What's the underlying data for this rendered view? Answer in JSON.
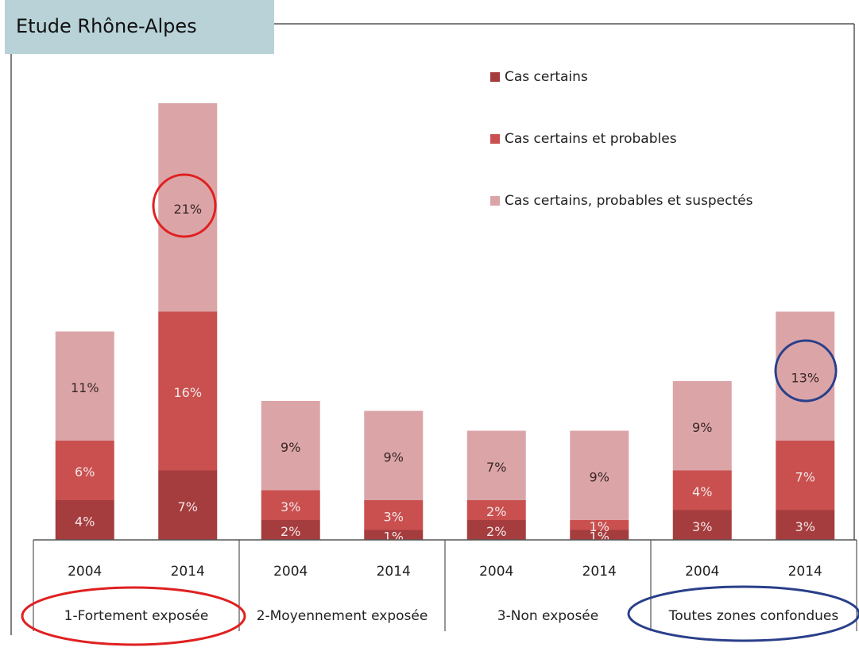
{
  "chart_data": {
    "type": "stacked_bar",
    "title": "Etude Rhône-Alpes",
    "categories": [
      "2004",
      "2014",
      "2004",
      "2014",
      "2004",
      "2014",
      "2004",
      "2014"
    ],
    "groups": [
      "1-Fortement exposée",
      "2-Moyennement exposée",
      "3-Non exposée",
      "Toutes zones confondues"
    ],
    "series": [
      {
        "name": "Cas certains",
        "color": "#a53c3e",
        "values": [
          4,
          7,
          2,
          1,
          2,
          1,
          3,
          3
        ],
        "value_labels": [
          "4%",
          "7%",
          "2%",
          "1%",
          "2%",
          "1%",
          "3%",
          "3%"
        ]
      },
      {
        "name": "Cas certains et probables",
        "color": "#c9504f",
        "values": [
          6,
          16,
          3,
          3,
          2,
          1,
          4,
          7
        ],
        "value_labels": [
          "6%",
          "16%",
          "3%",
          "3%",
          "2%",
          "1%",
          "4%",
          "7%"
        ]
      },
      {
        "name": "Cas certains, probables et suspectés",
        "color": "#dba5a8",
        "values": [
          11,
          21,
          9,
          9,
          7,
          9,
          9,
          13
        ],
        "value_labels": [
          "11%",
          "21%",
          "9%",
          "9%",
          "7%",
          "9%",
          "9%",
          "13%"
        ]
      }
    ]
  }
}
